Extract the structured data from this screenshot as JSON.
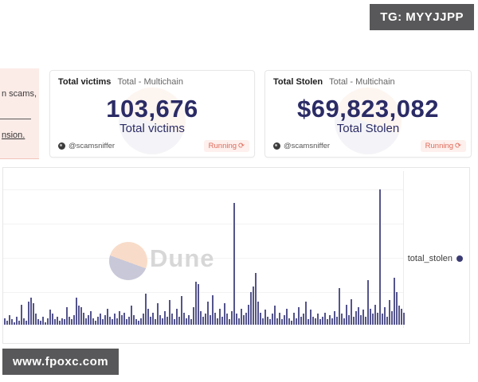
{
  "watermarks": {
    "top_right": "TG: MYYJJPP",
    "bottom_left": "www.fpoxc.com"
  },
  "left_panel": {
    "text_fragment": "n scams,",
    "link_fragment": "nsion."
  },
  "cards": [
    {
      "title": "Total victims",
      "scope": "Total - Multichain",
      "value": "103,676",
      "label": "Total victims",
      "author": "@scamsniffer",
      "status": "Running"
    },
    {
      "title": "Total Stolen",
      "scope": "Total - Multichain",
      "value": "$69,823,082",
      "label": "Total Stolen",
      "author": "@scamsniffer",
      "status": "Running"
    }
  ],
  "chart": {
    "watermark_text": "Dune",
    "legend_label": "total_stolen"
  },
  "chart_data": {
    "type": "bar",
    "title": "",
    "xlabel": "",
    "ylabel": "",
    "legend_position": "right",
    "grid": true,
    "note": "Dense time-series bar chart of total_stolen; axis tick labels are not visible in the screenshot, so values are estimated relative bar heights as % of the tallest bar.",
    "ylim": [
      0,
      100
    ],
    "series": [
      {
        "name": "total_stolen",
        "values_relative_pct": [
          5,
          3,
          7,
          4,
          2,
          6,
          3,
          15,
          5,
          3,
          17,
          20,
          16,
          8,
          4,
          3,
          6,
          2,
          5,
          11,
          8,
          4,
          6,
          3,
          5,
          4,
          13,
          6,
          4,
          7,
          20,
          14,
          13,
          9,
          5,
          7,
          10,
          5,
          3,
          6,
          8,
          4,
          7,
          12,
          6,
          4,
          8,
          5,
          10,
          7,
          9,
          4,
          6,
          14,
          7,
          4,
          3,
          5,
          8,
          23,
          12,
          6,
          9,
          4,
          16,
          7,
          5,
          10,
          6,
          18,
          8,
          4,
          12,
          6,
          21,
          9,
          5,
          7,
          4,
          13,
          32,
          30,
          10,
          6,
          8,
          17,
          7,
          22,
          9,
          5,
          12,
          6,
          16,
          8,
          4,
          10,
          90,
          8,
          5,
          12,
          7,
          9,
          15,
          24,
          28,
          38,
          17,
          9,
          5,
          11,
          6,
          4,
          8,
          14,
          5,
          9,
          4,
          7,
          12,
          5,
          3,
          9,
          5,
          13,
          6,
          8,
          17,
          4,
          11,
          6,
          5,
          8,
          4,
          6,
          9,
          4,
          7,
          5,
          10,
          6,
          27,
          8,
          5,
          15,
          7,
          19,
          6,
          10,
          13,
          7,
          11,
          6,
          33,
          12,
          8,
          15,
          9,
          100,
          8,
          13,
          6,
          18,
          10,
          35,
          24,
          14,
          12,
          9
        ]
      }
    ]
  },
  "icons": {
    "refresh": "⟳",
    "legend_dot": "●"
  },
  "colors": {
    "bar": "#54548C",
    "value_text": "#2B2B66",
    "status_text": "#E06A5A",
    "status_bg": "#FDF0ED",
    "badge_bg": "#58585A",
    "panel_pink": "#FCECE8",
    "watermark_peach": "#F8DCC9",
    "watermark_lavender": "#C8C8D9"
  }
}
